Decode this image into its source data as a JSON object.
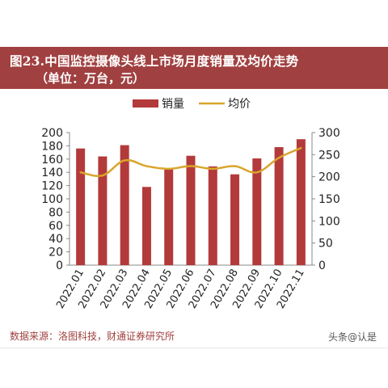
{
  "header": {
    "title": "图23.中国监控摄像头线上市场月度销量及均价走势",
    "unit": "（单位：万台，元）"
  },
  "footer": {
    "source": "数据来源：洛图科技，财通证券研究所",
    "watermark": "头条@认是"
  },
  "colors": {
    "bar": "#b33a3a",
    "line": "#d9a52b",
    "title_bg": "#a14040"
  },
  "chart_data": {
    "type": "bar",
    "categories": [
      "2022.01",
      "2022.02",
      "2022.03",
      "2022.04",
      "2022.05",
      "2022.06",
      "2022.07",
      "2022.08",
      "2022.09",
      "2022.10",
      "2022.11"
    ],
    "series": [
      {
        "name": "销量",
        "type": "bar",
        "axis": "left",
        "values": [
          176,
          164,
          181,
          118,
          145,
          165,
          149,
          137,
          161,
          178,
          190
        ]
      },
      {
        "name": "均价",
        "type": "line",
        "axis": "right",
        "values": [
          210,
          203,
          237,
          224,
          218,
          224,
          218,
          224,
          210,
          243,
          265
        ]
      }
    ],
    "ylim_left": [
      0,
      200
    ],
    "yticks_left": [
      0,
      20,
      40,
      60,
      80,
      100,
      120,
      140,
      160,
      180,
      200
    ],
    "ylim_right": [
      0,
      300
    ],
    "yticks_right": [
      0,
      50,
      100,
      150,
      200,
      250,
      300
    ],
    "legend_position": "top-center",
    "grid": false
  }
}
